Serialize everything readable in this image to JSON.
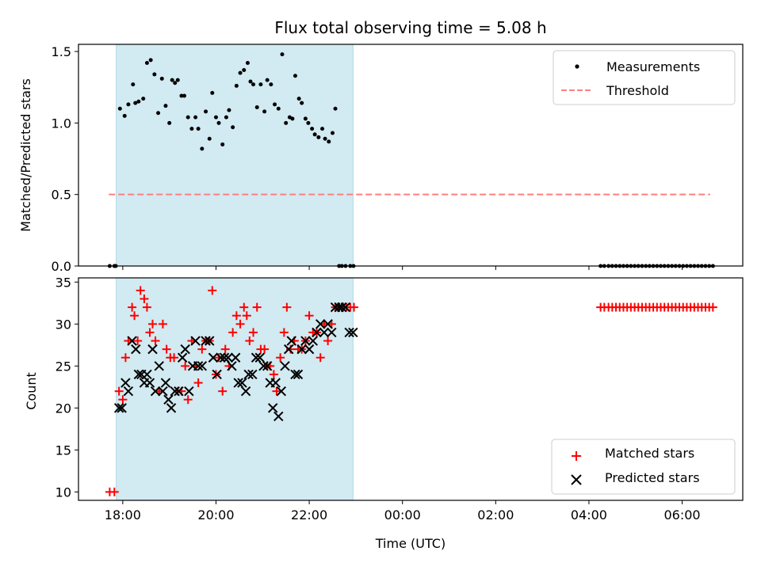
{
  "chart_data": {
    "type": "scatter",
    "title": "Flux total observing time = 5.08 h",
    "xlabel": "Time (UTC)",
    "x_unit": "hours since 18:00 UTC",
    "xlim": [
      -0.95,
      13.3
    ],
    "xticks": [
      {
        "x": 0,
        "label": "18:00"
      },
      {
        "x": 2,
        "label": "20:00"
      },
      {
        "x": 4,
        "label": "22:00"
      },
      {
        "x": 6,
        "label": "00:00"
      },
      {
        "x": 8,
        "label": "02:00"
      },
      {
        "x": 10,
        "label": "04:00"
      },
      {
        "x": 12,
        "label": "06:00"
      }
    ],
    "observing_span": {
      "start": -0.14,
      "end": 4.94,
      "color": "#add8e6"
    },
    "top_panel": {
      "ylabel": "Matched/Predicted stars",
      "ylim": [
        0.0,
        1.55
      ],
      "yticks": [
        0.0,
        0.5,
        1.0,
        1.5
      ],
      "ytick_labels": [
        "0.0",
        "0.5",
        "1.0",
        "1.5"
      ],
      "legend": {
        "position": "upper right",
        "entries": [
          "Measurements",
          "Threshold"
        ]
      },
      "threshold": {
        "name": "Threshold",
        "y": 0.5,
        "x": [
          -0.3,
          12.6
        ],
        "color": "#ff7f7f"
      },
      "measurements": {
        "name": "Measurements",
        "color": "#000000",
        "x": [
          -0.28,
          -0.18,
          -0.15,
          -0.06,
          0.04,
          0.12,
          0.22,
          0.27,
          0.34,
          0.44,
          0.52,
          0.6,
          0.68,
          0.76,
          0.84,
          0.92,
          1.0,
          1.06,
          1.12,
          1.18,
          1.26,
          1.32,
          1.4,
          1.48,
          1.56,
          1.62,
          1.7,
          1.78,
          1.86,
          1.92,
          2.0,
          2.06,
          2.14,
          2.22,
          2.28,
          2.36,
          2.44,
          2.52,
          2.6,
          2.68,
          2.74,
          2.8,
          2.88,
          2.96,
          3.04,
          3.1,
          3.18,
          3.26,
          3.34,
          3.42,
          3.5,
          3.58,
          3.64,
          3.7,
          3.78,
          3.84,
          3.92,
          3.98,
          4.06,
          4.12,
          4.2,
          4.28,
          4.34,
          4.42,
          4.5,
          4.56,
          4.64,
          4.7,
          4.78,
          4.88,
          4.95,
          10.25,
          10.33,
          10.42,
          10.5,
          10.58,
          10.66,
          10.74,
          10.82,
          10.9,
          10.98,
          11.06,
          11.14,
          11.22,
          11.3,
          11.38,
          11.46,
          11.54,
          11.62,
          11.7,
          11.78,
          11.86,
          11.94,
          12.02,
          12.1,
          12.18,
          12.26,
          12.34,
          12.42,
          12.5,
          12.58,
          12.66
        ],
        "y": [
          0.0,
          0.0,
          0.0,
          1.1,
          1.05,
          1.13,
          1.27,
          1.14,
          1.15,
          1.17,
          1.42,
          1.44,
          1.34,
          1.07,
          1.31,
          1.12,
          1.0,
          1.3,
          1.28,
          1.3,
          1.19,
          1.19,
          1.04,
          0.96,
          1.04,
          0.96,
          0.82,
          1.08,
          0.89,
          1.21,
          1.04,
          1.0,
          0.85,
          1.04,
          1.09,
          0.97,
          1.26,
          1.35,
          1.37,
          1.42,
          1.29,
          1.27,
          1.11,
          1.27,
          1.08,
          1.3,
          1.27,
          1.13,
          1.1,
          1.48,
          1.0,
          1.04,
          1.03,
          1.33,
          1.17,
          1.14,
          1.03,
          1.0,
          0.96,
          0.92,
          0.9,
          0.96,
          0.89,
          0.87,
          0.93,
          1.1,
          0.0,
          0.0,
          0.0,
          0.0,
          0.0,
          0.0,
          0.0,
          0.0,
          0.0,
          0.0,
          0.0,
          0.0,
          0.0,
          0.0,
          0.0,
          0.0,
          0.0,
          0.0,
          0.0,
          0.0,
          0.0,
          0.0,
          0.0,
          0.0,
          0.0,
          0.0,
          0.0,
          0.0,
          0.0,
          0.0,
          0.0,
          0.0,
          0.0,
          0.0,
          0.0,
          0.0
        ]
      }
    },
    "bottom_panel": {
      "ylabel": "Count",
      "ylim": [
        9.0,
        35.5
      ],
      "yticks": [
        10,
        15,
        20,
        25,
        30,
        35
      ],
      "ytick_labels": [
        "10",
        "15",
        "20",
        "25",
        "30",
        "35"
      ],
      "legend": {
        "position": "lower right",
        "entries": [
          "Matched stars",
          "Predicted stars"
        ]
      },
      "series": [
        {
          "name": "Matched stars",
          "marker": "plus",
          "color": "#ff0000",
          "x": [
            -0.28,
            -0.18,
            -0.08,
            0.0,
            0.06,
            0.12,
            0.2,
            0.25,
            0.32,
            0.38,
            0.46,
            0.52,
            0.58,
            0.64,
            0.7,
            0.78,
            0.86,
            0.94,
            1.02,
            1.1,
            1.18,
            1.26,
            1.34,
            1.4,
            1.48,
            1.56,
            1.62,
            1.7,
            1.78,
            1.86,
            1.92,
            2.0,
            2.06,
            2.14,
            2.2,
            2.28,
            2.36,
            2.44,
            2.52,
            2.6,
            2.66,
            2.72,
            2.8,
            2.88,
            2.96,
            3.04,
            3.1,
            3.16,
            3.24,
            3.3,
            3.38,
            3.46,
            3.52,
            3.6,
            3.68,
            3.76,
            3.84,
            3.92,
            4.0,
            4.08,
            4.16,
            4.24,
            4.32,
            4.4,
            4.48,
            4.56,
            4.64,
            4.72,
            4.8,
            4.88,
            4.96,
            10.25,
            10.33,
            10.42,
            10.5,
            10.58,
            10.66,
            10.74,
            10.82,
            10.9,
            10.98,
            11.06,
            11.14,
            11.22,
            11.3,
            11.38,
            11.46,
            11.54,
            11.62,
            11.7,
            11.78,
            11.86,
            11.94,
            12.02,
            12.1,
            12.18,
            12.26,
            12.34,
            12.42,
            12.5,
            12.58,
            12.66
          ],
          "y": [
            10,
            10,
            22,
            21,
            26,
            28,
            32,
            31,
            28,
            34,
            33,
            32,
            29,
            30,
            28,
            22,
            30,
            27,
            26,
            26,
            22,
            22,
            25,
            21,
            28,
            25,
            23,
            27,
            28,
            28,
            34,
            24,
            26,
            22,
            27,
            25,
            29,
            31,
            30,
            32,
            31,
            28,
            29,
            32,
            27,
            27,
            25,
            25,
            24,
            22,
            26,
            29,
            32,
            27,
            28,
            27,
            27,
            28,
            31,
            29,
            29,
            26,
            30,
            28,
            30,
            32,
            32,
            32,
            32,
            32,
            32,
            32,
            32,
            32,
            32,
            32,
            32,
            32,
            32,
            32,
            32,
            32,
            32,
            32,
            32,
            32,
            32,
            32,
            32,
            32,
            32,
            32,
            32,
            32,
            32,
            32,
            32,
            32,
            32,
            32,
            32,
            32
          ]
        },
        {
          "name": "Predicted stars",
          "marker": "x",
          "color": "#000000",
          "x": [
            -0.08,
            -0.02,
            0.06,
            0.12,
            0.2,
            0.28,
            0.34,
            0.4,
            0.46,
            0.52,
            0.58,
            0.64,
            0.7,
            0.78,
            0.86,
            0.92,
            0.98,
            1.04,
            1.12,
            1.2,
            1.28,
            1.34,
            1.42,
            1.5,
            1.56,
            1.62,
            1.7,
            1.78,
            1.86,
            1.94,
            2.02,
            2.1,
            2.18,
            2.26,
            2.34,
            2.42,
            2.48,
            2.56,
            2.64,
            2.7,
            2.78,
            2.86,
            2.94,
            3.02,
            3.1,
            3.16,
            3.22,
            3.28,
            3.34,
            3.4,
            3.48,
            3.56,
            3.62,
            3.7,
            3.76,
            3.84,
            3.92,
            4.0,
            4.08,
            4.16,
            4.24,
            4.32,
            4.4,
            4.48,
            4.56,
            4.64,
            4.7,
            4.78,
            4.86,
            4.94
          ],
          "y": [
            20,
            20,
            23,
            22,
            28,
            27,
            24,
            24,
            23,
            24,
            23,
            27,
            22,
            25,
            22,
            23,
            21,
            20,
            22,
            22,
            26,
            27,
            22,
            25,
            28,
            25,
            25,
            28,
            28,
            26,
            24,
            26,
            26,
            26,
            25,
            26,
            23,
            23,
            22,
            24,
            24,
            26,
            26,
            25,
            25,
            23,
            20,
            23,
            19,
            22,
            25,
            27,
            28,
            24,
            24,
            27,
            28,
            27,
            28,
            29,
            30,
            29,
            30,
            29,
            32,
            32,
            32,
            32,
            29,
            29
          ]
        }
      ]
    }
  }
}
